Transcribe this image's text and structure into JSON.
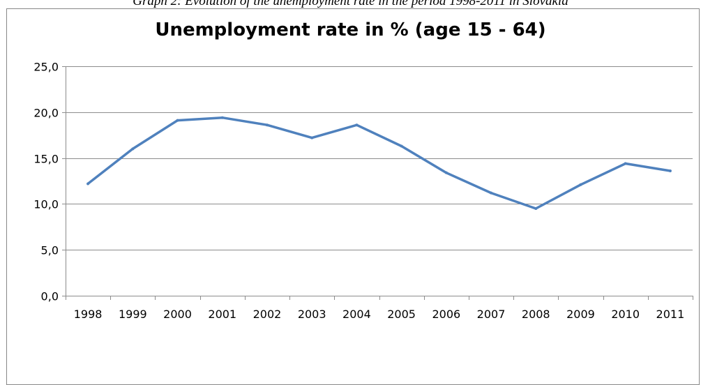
{
  "caption": "Graph 2: Evolution of the unemployment rate in the period 1998-2011 in Slovakia",
  "chart_data": {
    "type": "line",
    "title": "Unemployment rate in % (age 15 - 64)",
    "xlabel": "",
    "ylabel": "",
    "categories": [
      "1998",
      "1999",
      "2000",
      "2001",
      "2002",
      "2003",
      "2004",
      "2005",
      "2006",
      "2007",
      "2008",
      "2009",
      "2010",
      "2011"
    ],
    "series": [
      {
        "values": [
          12.2,
          16.0,
          19.1,
          19.4,
          18.6,
          17.2,
          18.6,
          16.3,
          13.4,
          11.2,
          9.5,
          12.1,
          14.4,
          13.6
        ]
      }
    ],
    "ylim": [
      0,
      25
    ],
    "yticks": [
      "0,0",
      "5,0",
      "10,0",
      "15,0",
      "20,0",
      "25,0"
    ],
    "grid": true,
    "legend": "none",
    "line_color": "#4f81bd"
  }
}
